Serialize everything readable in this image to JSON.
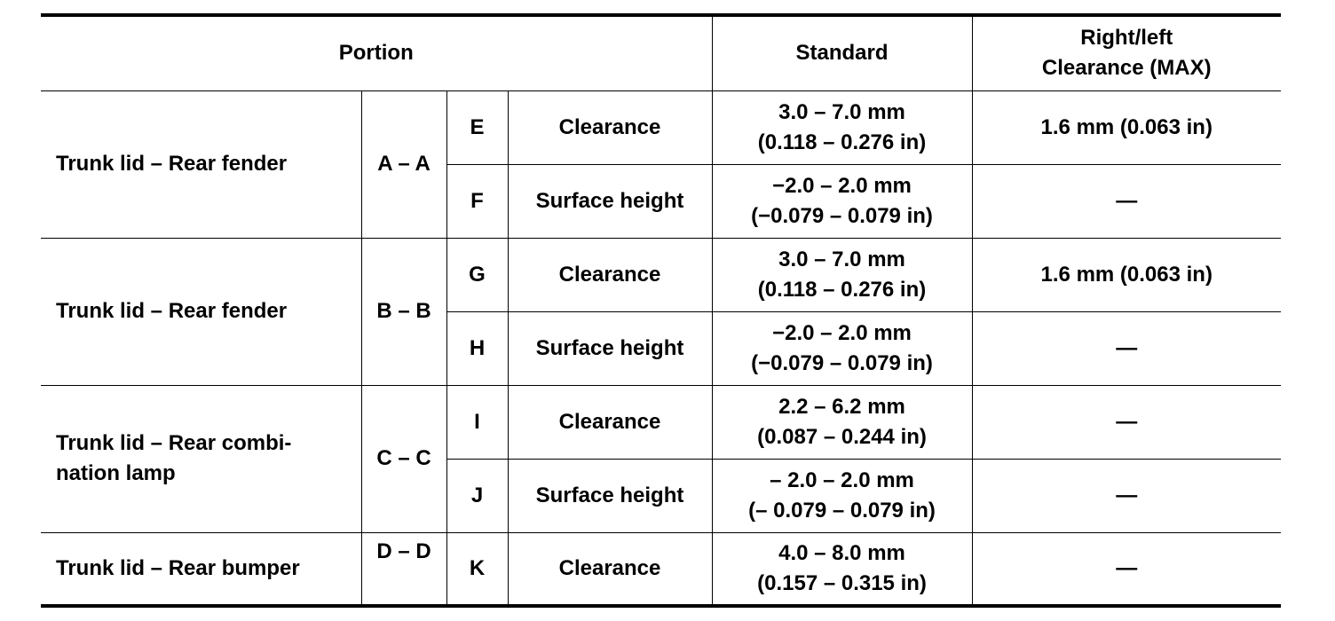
{
  "header": {
    "portion": "Portion",
    "standard": "Standard",
    "max": [
      "Right/left",
      "Clearance (MAX)"
    ]
  },
  "groups": [
    {
      "portion": [
        "Trunk lid – Rear fender"
      ],
      "section": "A – A",
      "rows": [
        {
          "id": "E",
          "item": "Clearance",
          "standard": [
            "3.0 – 7.0 mm",
            "(0.118 – 0.276 in)"
          ],
          "max": "1.6 mm (0.063 in)"
        },
        {
          "id": "F",
          "item": "Surface height",
          "standard": [
            "−2.0 – 2.0 mm",
            "(−0.079 – 0.079 in)"
          ],
          "max": "—"
        }
      ]
    },
    {
      "portion": [
        "Trunk lid – Rear fender"
      ],
      "section": "B – B",
      "rows": [
        {
          "id": "G",
          "item": "Clearance",
          "standard": [
            "3.0 – 7.0 mm",
            "(0.118 – 0.276 in)"
          ],
          "max": "1.6 mm (0.063 in)"
        },
        {
          "id": "H",
          "item": "Surface height",
          "standard": [
            "−2.0 – 2.0 mm",
            "(−0.079 – 0.079 in)"
          ],
          "max": "—"
        }
      ]
    },
    {
      "portion": [
        "Trunk lid – Rear combi-",
        "nation lamp"
      ],
      "section": "C – C",
      "rows": [
        {
          "id": "I",
          "item": "Clearance",
          "standard": [
            "2.2 – 6.2 mm",
            "(0.087 – 0.244 in)"
          ],
          "max": "—"
        },
        {
          "id": "J",
          "item": "Surface height",
          "standard": [
            "– 2.0 – 2.0 mm",
            "(– 0.079 – 0.079 in)"
          ],
          "max": "—"
        }
      ]
    },
    {
      "portion": [
        "Trunk lid – Rear bumper"
      ],
      "section": "D – D",
      "rows": [
        {
          "id": "K",
          "item": "Clearance",
          "standard": [
            "4.0 – 8.0 mm",
            "(0.157 – 0.315 in)"
          ],
          "max": "—"
        }
      ]
    }
  ]
}
